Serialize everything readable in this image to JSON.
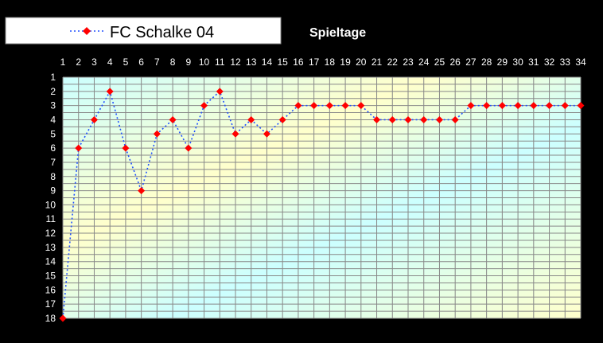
{
  "chart_data": {
    "type": "line",
    "title": "",
    "xlabel": "Spieltage",
    "ylabel": "",
    "x": [
      1,
      2,
      3,
      4,
      5,
      6,
      7,
      8,
      9,
      10,
      11,
      12,
      13,
      14,
      15,
      16,
      17,
      18,
      19,
      20,
      21,
      22,
      23,
      24,
      25,
      26,
      27,
      28,
      29,
      30,
      31,
      32,
      33,
      34
    ],
    "xlim": [
      1,
      34
    ],
    "ylim": [
      1,
      18
    ],
    "y_inverted": true,
    "y_ticks": [
      1,
      2,
      3,
      4,
      5,
      6,
      7,
      8,
      9,
      10,
      11,
      12,
      13,
      14,
      15,
      16,
      17,
      18
    ],
    "x_axis_position": "top",
    "grid": true,
    "legend_position": "top-left",
    "series": [
      {
        "name": "FC Schalke 04",
        "color": "#1f4fff",
        "marker_color": "#ff0000",
        "line_style": "dotted",
        "marker": "diamond",
        "values": [
          18,
          6,
          4,
          2,
          6,
          9,
          5,
          4,
          6,
          3,
          2,
          5,
          4,
          5,
          4,
          3,
          3,
          3,
          3,
          3,
          4,
          4,
          4,
          4,
          4,
          4,
          3,
          3,
          3,
          3,
          3,
          3,
          3,
          3
        ]
      }
    ]
  },
  "colors": {
    "background": "#000000",
    "grid_line": "#888888",
    "gradient_cyan": "#ccffff",
    "gradient_yellow": "#ffffcc"
  }
}
